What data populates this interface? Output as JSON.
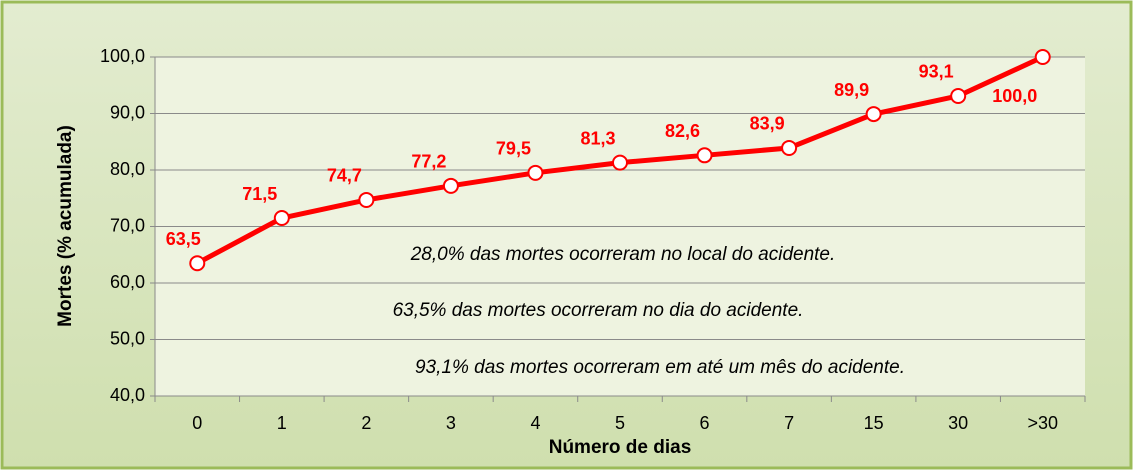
{
  "chart_data": {
    "type": "line",
    "categories": [
      "0",
      "1",
      "2",
      "3",
      "4",
      "5",
      "6",
      "7",
      "15",
      "30",
      ">30"
    ],
    "series": [
      {
        "name": "Mortes",
        "color": "#ff0000",
        "values": [
          63.5,
          71.5,
          74.7,
          77.2,
          79.5,
          81.3,
          82.6,
          83.9,
          89.9,
          93.1,
          100.0
        ],
        "value_labels": [
          "63,5",
          "71,5",
          "74,7",
          "77,2",
          "79,5",
          "81,3",
          "82,6",
          "83,9",
          "89,9",
          "93,1",
          "100,0"
        ]
      }
    ],
    "y_label": "Mortes (% acumulada)",
    "x_label": "Número de dias",
    "ylim": [
      40,
      100
    ],
    "yticks": [
      {
        "value": 40,
        "label": "40,0"
      },
      {
        "value": 50,
        "label": "50,0"
      },
      {
        "value": 60,
        "label": "60,0"
      },
      {
        "value": 70,
        "label": "70,0"
      },
      {
        "value": 80,
        "label": "80,0"
      },
      {
        "value": 90,
        "label": "90,0"
      },
      {
        "value": 100,
        "label": "100,0"
      }
    ],
    "grid": true,
    "annotations": [
      "28,0%  das mortes ocorreram no local do acidente.",
      "63,5% das mortes ocorreram no dia do acidente.",
      "93,1%  das mortes  ocorreram em até um mês do acidente."
    ]
  }
}
